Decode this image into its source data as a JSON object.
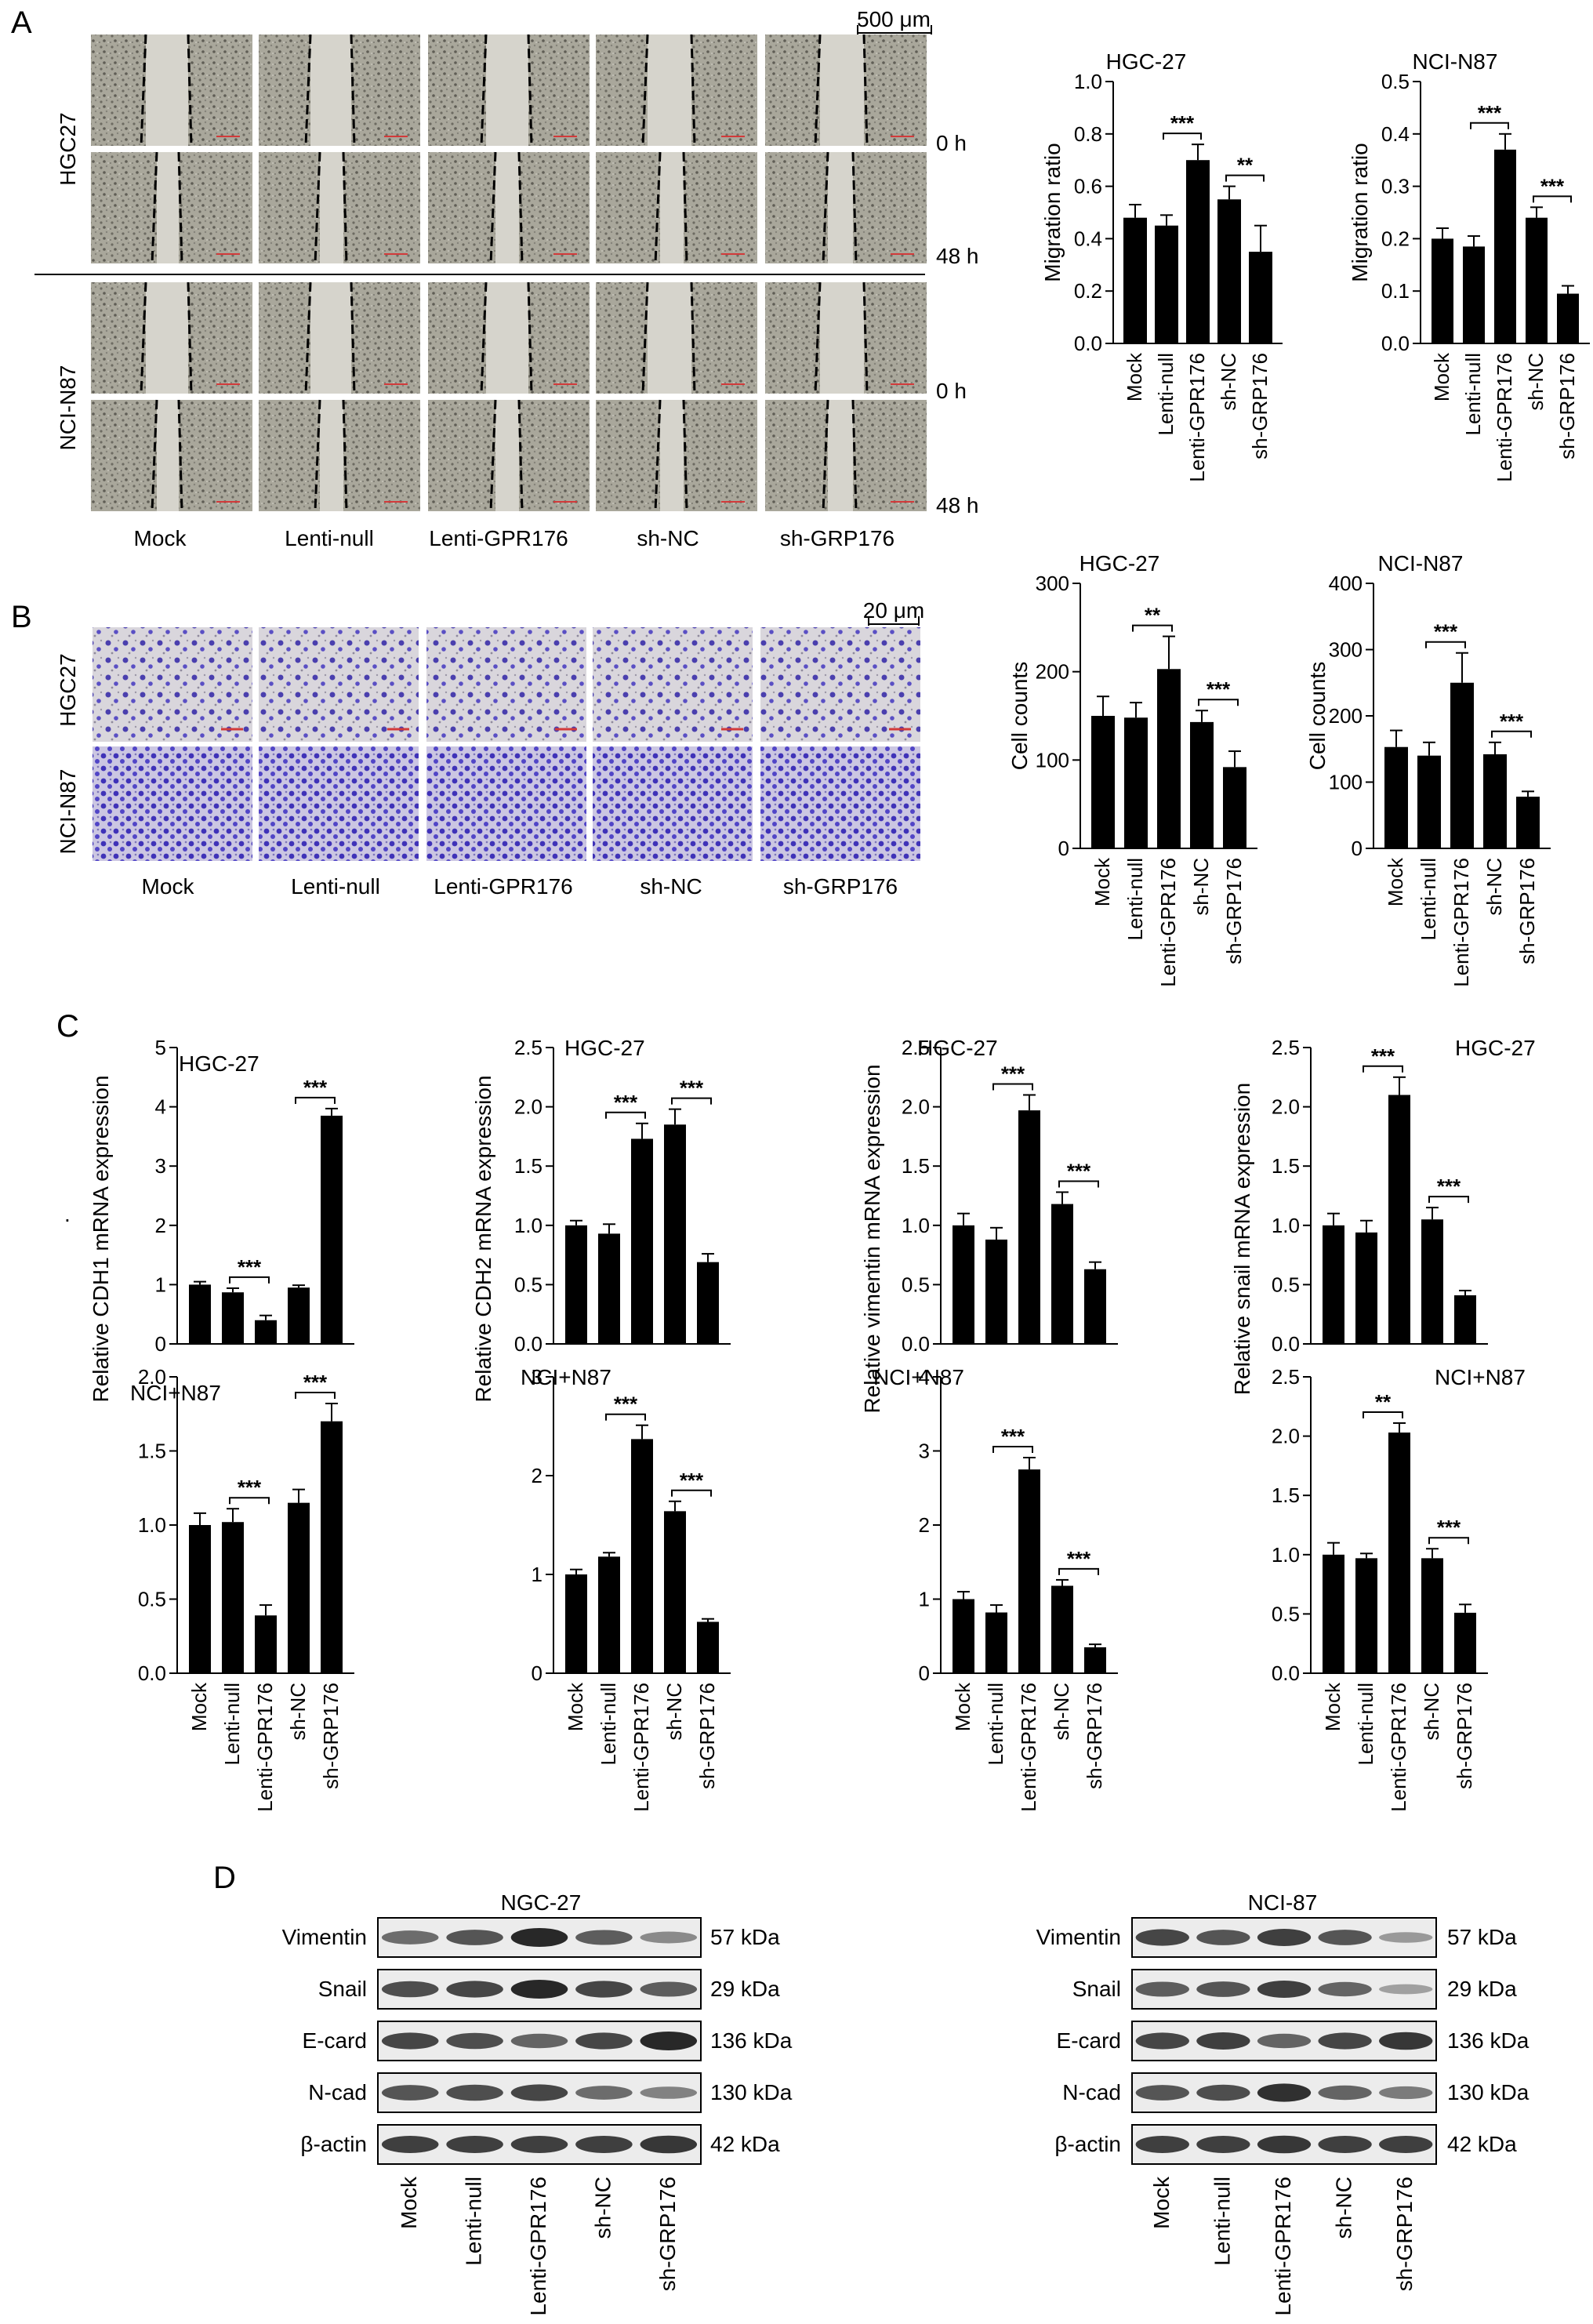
{
  "panel_labels": [
    "A",
    "B",
    "C",
    "D"
  ],
  "groups": [
    "Mock",
    "Lenti-null",
    "Lenti-GPR176",
    "sh-NC",
    "sh-GRP176"
  ],
  "stray_dot": ".",
  "panelA": {
    "scale_bar": "500 μm",
    "row_labels": [
      "HGC27",
      "NCI-N87"
    ],
    "time_labels": [
      "0 h",
      "48 h",
      "0 h",
      "48 h"
    ],
    "col_labels": [
      "Mock",
      "Lenti-null",
      "Lenti-GPR176",
      "sh-NC",
      "sh-GRP176"
    ]
  },
  "panelB": {
    "scale_bar": "20 μm",
    "row_labels": [
      "HGC27",
      "NCI-N87"
    ],
    "col_labels": [
      "Mock",
      "Lenti-null",
      "Lenti-GPR176",
      "sh-NC",
      "sh-GRP176"
    ]
  },
  "panelD": {
    "left": {
      "title": "NGC-27",
      "rows": [
        "Vimentin",
        "Snail",
        "E-card",
        "N-cad",
        "β-actin"
      ],
      "kda": [
        "57 kDa",
        "29 kDa",
        "136 kDa",
        "130 kDa",
        "42 kDa"
      ],
      "intensity": [
        [
          0.55,
          0.7,
          1.0,
          0.65,
          0.35
        ],
        [
          0.75,
          0.8,
          1.0,
          0.8,
          0.65
        ],
        [
          0.8,
          0.75,
          0.6,
          0.8,
          1.0
        ],
        [
          0.7,
          0.75,
          0.8,
          0.55,
          0.4
        ],
        [
          0.85,
          0.85,
          0.85,
          0.85,
          0.9
        ]
      ]
    },
    "right": {
      "title": "NCI-87",
      "rows": [
        "Vimentin",
        "Snail",
        "E-card",
        "N-cad",
        "β-actin"
      ],
      "kda": [
        "57 kDa",
        "29 kDa",
        "136 kDa",
        "130 kDa",
        "42 kDa"
      ],
      "intensity": [
        [
          0.8,
          0.7,
          0.85,
          0.7,
          0.25
        ],
        [
          0.65,
          0.7,
          0.85,
          0.6,
          0.2
        ],
        [
          0.8,
          0.85,
          0.6,
          0.8,
          0.9
        ],
        [
          0.7,
          0.75,
          0.95,
          0.6,
          0.45
        ],
        [
          0.85,
          0.85,
          0.9,
          0.85,
          0.85
        ]
      ]
    }
  },
  "chart_data": [
    {
      "type": "bar",
      "title": "HGC-27",
      "ylabel": "Migration ratio",
      "ylim": [
        0,
        1.0
      ],
      "yticks": [
        "0.0",
        "0.2",
        "0.4",
        "0.6",
        "0.8",
        "1.0"
      ],
      "categories": [
        "Mock",
        "Lenti-null",
        "Lenti-GPR176",
        "sh-NC",
        "sh-GRP176"
      ],
      "values": [
        0.48,
        0.45,
        0.7,
        0.55,
        0.35
      ],
      "errors": [
        0.05,
        0.04,
        0.06,
        0.05,
        0.1
      ],
      "sig": [
        {
          "from": 1,
          "to": 2,
          "label": "***"
        },
        {
          "from": 3,
          "to": 4,
          "label": "**"
        }
      ]
    },
    {
      "type": "bar",
      "title": "NCI-N87",
      "ylabel": "Migration ratio",
      "ylim": [
        0,
        0.5
      ],
      "yticks": [
        "0.0",
        "0.1",
        "0.2",
        "0.3",
        "0.4",
        "0.5"
      ],
      "categories": [
        "Mock",
        "Lenti-null",
        "Lenti-GPR176",
        "sh-NC",
        "sh-GRP176"
      ],
      "values": [
        0.2,
        0.185,
        0.37,
        0.24,
        0.095
      ],
      "errors": [
        0.02,
        0.02,
        0.03,
        0.02,
        0.015
      ],
      "sig": [
        {
          "from": 1,
          "to": 2,
          "label": "***"
        },
        {
          "from": 3,
          "to": 4,
          "label": "***"
        }
      ]
    },
    {
      "type": "bar",
      "title": "HGC-27",
      "ylabel": "Cell counts",
      "ylim": [
        0,
        300
      ],
      "yticks": [
        "0",
        "100",
        "200",
        "300"
      ],
      "categories": [
        "Mock",
        "Lenti-null",
        "Lenti-GPR176",
        "sh-NC",
        "sh-GRP176"
      ],
      "values": [
        150,
        148,
        203,
        143,
        92
      ],
      "errors": [
        22,
        17,
        37,
        13,
        18
      ],
      "sig": [
        {
          "from": 1,
          "to": 2,
          "label": "**"
        },
        {
          "from": 3,
          "to": 4,
          "label": "***"
        }
      ]
    },
    {
      "type": "bar",
      "title": "NCI-N87",
      "ylabel": "Cell counts",
      "ylim": [
        0,
        400
      ],
      "yticks": [
        "0",
        "100",
        "200",
        "300",
        "400"
      ],
      "categories": [
        "Mock",
        "Lenti-null",
        "Lenti-GPR176",
        "sh-NC",
        "sh-GRP176"
      ],
      "values": [
        153,
        140,
        250,
        142,
        78
      ],
      "errors": [
        25,
        20,
        45,
        18,
        8
      ],
      "sig": [
        {
          "from": 1,
          "to": 2,
          "label": "***"
        },
        {
          "from": 3,
          "to": 4,
          "label": "***"
        }
      ]
    },
    {
      "type": "bar",
      "title": "HGC-27",
      "ylabel": "Relative CDH1 mRNA expression",
      "ylim": [
        0,
        5
      ],
      "yticks": [
        "0",
        "1",
        "2",
        "3",
        "4",
        "5"
      ],
      "categories": [
        "Mock",
        "Lenti-null",
        "Lenti-GPR176",
        "sh-NC",
        "sh-GRP176"
      ],
      "values": [
        1.0,
        0.87,
        0.4,
        0.95,
        3.85
      ],
      "errors": [
        0.05,
        0.07,
        0.08,
        0.04,
        0.12
      ],
      "sig": [
        {
          "from": 1,
          "to": 2,
          "label": "***"
        },
        {
          "from": 3,
          "to": 4,
          "label": "***"
        }
      ]
    },
    {
      "type": "bar",
      "title": "NCI+N87",
      "ylabel": "",
      "ylim": [
        0,
        2.0
      ],
      "yticks": [
        "0.0",
        "0.5",
        "1.0",
        "1.5",
        "2.0"
      ],
      "categories": [
        "Mock",
        "Lenti-null",
        "Lenti-GPR176",
        "sh-NC",
        "sh-GRP176"
      ],
      "values": [
        1.0,
        1.02,
        0.39,
        1.15,
        1.7
      ],
      "errors": [
        0.08,
        0.09,
        0.07,
        0.09,
        0.12
      ],
      "sig": [
        {
          "from": 1,
          "to": 2,
          "label": "***"
        },
        {
          "from": 3,
          "to": 4,
          "label": "***"
        }
      ]
    },
    {
      "type": "bar",
      "title": "HGC-27",
      "ylabel": "Relative CDH2 mRNA expression",
      "ylim": [
        0,
        2.5
      ],
      "yticks": [
        "0.0",
        "0.5",
        "1.0",
        "1.5",
        "2.0",
        "2.5"
      ],
      "categories": [
        "Mock",
        "Lenti-null",
        "Lenti-GPR176",
        "sh-NC",
        "sh-GRP176"
      ],
      "values": [
        1.0,
        0.93,
        1.73,
        1.85,
        0.69
      ],
      "errors": [
        0.04,
        0.08,
        0.13,
        0.13,
        0.07
      ],
      "sig": [
        {
          "from": 1,
          "to": 2,
          "label": "***"
        },
        {
          "from": 3,
          "to": 4,
          "label": "***"
        }
      ]
    },
    {
      "type": "bar",
      "title": "NCI+N87",
      "ylabel": "",
      "ylim": [
        0,
        3
      ],
      "yticks": [
        "0",
        "1",
        "2",
        "3"
      ],
      "categories": [
        "Mock",
        "Lenti-null",
        "Lenti-GPR176",
        "sh-NC",
        "sh-GRP176"
      ],
      "values": [
        1.0,
        1.18,
        2.37,
        1.64,
        0.52
      ],
      "errors": [
        0.05,
        0.04,
        0.14,
        0.1,
        0.03
      ],
      "sig": [
        {
          "from": 1,
          "to": 2,
          "label": "***"
        },
        {
          "from": 3,
          "to": 4,
          "label": "***"
        }
      ]
    },
    {
      "type": "bar",
      "title": "HGC-27",
      "ylabel": "Relative vimentin mRNA expression",
      "ylim": [
        0,
        2.5
      ],
      "yticks": [
        "0.0",
        "0.5",
        "1.0",
        "1.5",
        "2.0",
        "2.5"
      ],
      "categories": [
        "Mock",
        "Lenti-null",
        "Lenti-GPR176",
        "sh-NC",
        "sh-GRP176"
      ],
      "values": [
        1.0,
        0.88,
        1.97,
        1.18,
        0.63
      ],
      "errors": [
        0.1,
        0.1,
        0.13,
        0.1,
        0.06
      ],
      "sig": [
        {
          "from": 1,
          "to": 2,
          "label": "***"
        },
        {
          "from": 3,
          "to": 4,
          "label": "***"
        }
      ]
    },
    {
      "type": "bar",
      "title": "NCI+N87",
      "ylabel": "",
      "ylim": [
        0,
        4
      ],
      "yticks": [
        "0",
        "1",
        "2",
        "3",
        "4"
      ],
      "categories": [
        "Mock",
        "Lenti-null",
        "Lenti-GPR176",
        "sh-NC",
        "sh-GRP176"
      ],
      "values": [
        1.0,
        0.82,
        2.75,
        1.18,
        0.35
      ],
      "errors": [
        0.1,
        0.1,
        0.16,
        0.08,
        0.04
      ],
      "sig": [
        {
          "from": 1,
          "to": 2,
          "label": "***"
        },
        {
          "from": 3,
          "to": 4,
          "label": "***"
        }
      ]
    },
    {
      "type": "bar",
      "title": "HGC-27",
      "ylabel": "Relative snail mRNA expression",
      "ylim": [
        0,
        2.5
      ],
      "yticks": [
        "0.0",
        "0.5",
        "1.0",
        "1.5",
        "2.0",
        "2.5"
      ],
      "categories": [
        "Mock",
        "Lenti-null",
        "Lenti-GPR176",
        "sh-NC",
        "sh-GRP176"
      ],
      "values": [
        1.0,
        0.94,
        2.1,
        1.05,
        0.41
      ],
      "errors": [
        0.1,
        0.1,
        0.15,
        0.1,
        0.04
      ],
      "sig": [
        {
          "from": 1,
          "to": 2,
          "label": "***"
        },
        {
          "from": 3,
          "to": 4,
          "label": "***"
        }
      ]
    },
    {
      "type": "bar",
      "title": "NCI+N87",
      "ylabel": "",
      "ylim": [
        0,
        2.5
      ],
      "yticks": [
        "0.0",
        "0.5",
        "1.0",
        "1.5",
        "2.0",
        "2.5"
      ],
      "categories": [
        "Mock",
        "Lenti-null",
        "Lenti-GPR176",
        "sh-NC",
        "sh-GRP176"
      ],
      "values": [
        1.0,
        0.97,
        2.03,
        0.97,
        0.51
      ],
      "errors": [
        0.1,
        0.04,
        0.08,
        0.08,
        0.07
      ],
      "sig": [
        {
          "from": 1,
          "to": 2,
          "label": "**"
        },
        {
          "from": 3,
          "to": 4,
          "label": "***"
        }
      ]
    }
  ]
}
